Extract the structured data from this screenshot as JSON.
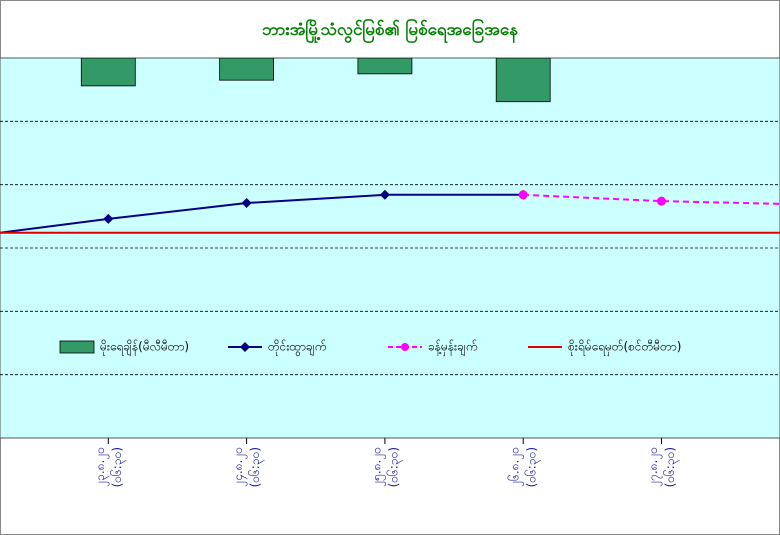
{
  "chart_data": {
    "type": "line",
    "title": "ဘားအံမြို့သံလွင်မြစ်၏ မြစ်ရေအခြေအနေ",
    "categories": [
      null,
      "၂၃.၈.၂၀",
      "၂၄.၈.၂၀",
      "၂၅.၈.၂၀",
      "၂၆.၈.၂၀",
      "၂၇.၈.၂၀",
      null
    ],
    "times": [
      null,
      "(၀၆:၃၀)",
      "(၀၆:၃၀)",
      "(၀၆:၃၀)",
      "(၀၆:၃၀)",
      "(၀၆:၃၀)",
      null
    ],
    "ylim": [
      0,
      6
    ],
    "y2lim": [
      6,
      0
    ],
    "grid": true,
    "legend": "bottom",
    "series": [
      {
        "name": "မိုးရေချိန်(မီလီမီတာ)",
        "type": "bar",
        "axis": "y2",
        "color": "#339966",
        "values": [
          null,
          0.44,
          0.35,
          0.25,
          0.69,
          null,
          null
        ]
      },
      {
        "name": "တိုင်းထွာချက်",
        "type": "line",
        "color": "#000080",
        "marker": "diamond",
        "values": [
          3.18,
          3.46,
          3.71,
          3.84,
          3.84,
          null,
          null
        ]
      },
      {
        "name": "ခန့်မှန်းချက်",
        "type": "line",
        "dashed": true,
        "color": "#ff00ff",
        "marker": "circle",
        "values": [
          null,
          null,
          null,
          null,
          3.84,
          3.74,
          3.69
        ]
      },
      {
        "name": "စိုးရိမ်ရေမှတ်(စင်တီမီတာ)",
        "type": "line",
        "color": "#e00000",
        "values": [
          3.24,
          3.24,
          3.24,
          3.24,
          3.24,
          3.24,
          3.24
        ]
      }
    ]
  }
}
